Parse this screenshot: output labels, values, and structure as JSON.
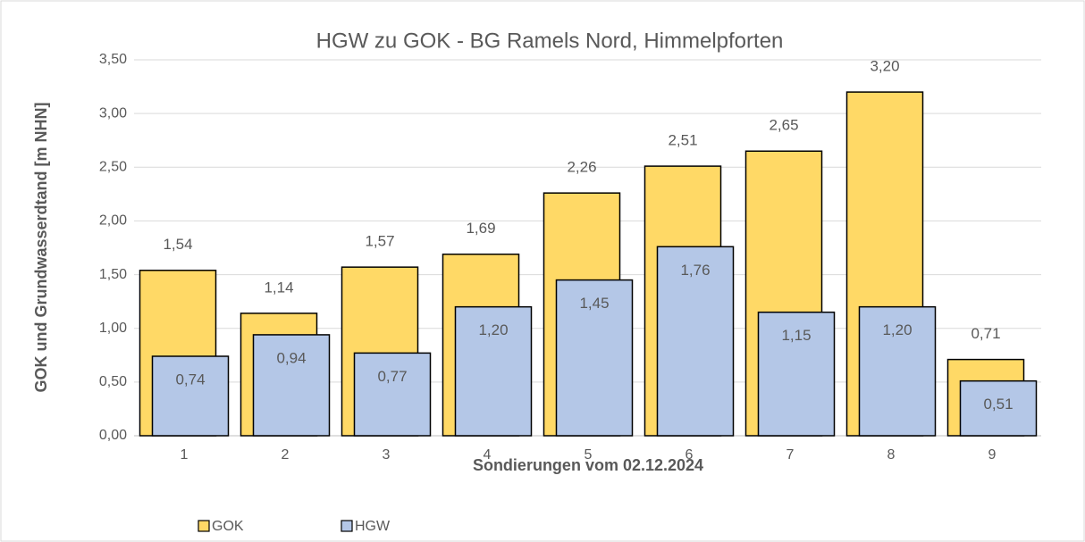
{
  "chart_data": {
    "type": "bar",
    "title": "HGW zu GOK - BG Ramels Nord, Himmelpforten",
    "x_label": "Sondierungen vom 02.12.2024",
    "y_label": "GOK und Grundwasserdtand [m NHN]",
    "categories": [
      "1",
      "2",
      "3",
      "4",
      "5",
      "6",
      "7",
      "8",
      "9"
    ],
    "series": [
      {
        "name": "GOK",
        "color": "#ffd966",
        "values": [
          1.54,
          1.14,
          1.57,
          1.69,
          2.26,
          2.51,
          2.65,
          3.2,
          0.71
        ],
        "value_labels": [
          "1,54",
          "1,14",
          "1,57",
          "1,69",
          "2,26",
          "2,51",
          "2,65",
          "3,20",
          "0,71"
        ]
      },
      {
        "name": "HGW",
        "color": "#b4c7e7",
        "values": [
          0.74,
          0.94,
          0.77,
          1.2,
          1.45,
          1.76,
          1.15,
          1.2,
          0.51
        ],
        "value_labels": [
          "0,74",
          "0,94",
          "0,77",
          "1,20",
          "1,45",
          "1,76",
          "1,15",
          "1,20",
          "0,51"
        ]
      }
    ],
    "ylim": [
      0,
      3.5
    ],
    "yticks": [
      {
        "value": 0,
        "label": "0,00"
      },
      {
        "value": 0.5,
        "label": "0,50"
      },
      {
        "value": 1,
        "label": "1,00"
      },
      {
        "value": 1.5,
        "label": "1,50"
      },
      {
        "value": 2,
        "label": "2,00"
      },
      {
        "value": 2.5,
        "label": "2,50"
      },
      {
        "value": 3,
        "label": "3,00"
      },
      {
        "value": 3.5,
        "label": "3,50"
      }
    ],
    "grid": true,
    "legend": "bottom-left"
  }
}
